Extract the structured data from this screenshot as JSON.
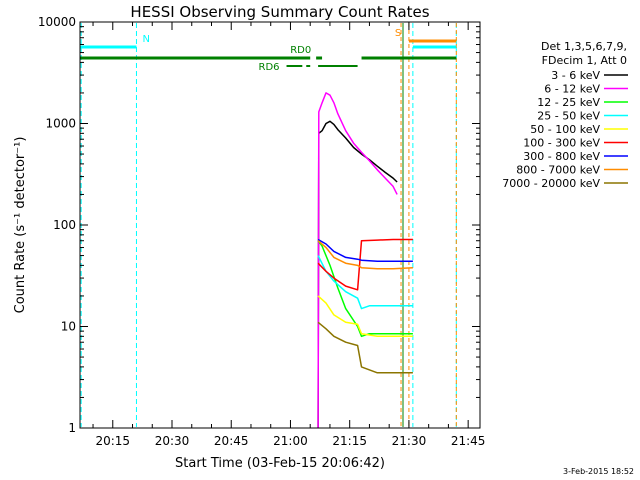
{
  "chart_data": {
    "type": "line",
    "title": "HESSI Observing Summary Count Rates",
    "xlabel": "Start Time (03-Feb-15 20:06:42)",
    "ylabel": "Count Rate (s⁻¹ detector⁻¹)",
    "x_ticks": [
      "20:15",
      "20:30",
      "20:45",
      "21:00",
      "21:15",
      "21:30",
      "21:45"
    ],
    "x_range": [
      "20:06:42",
      "21:48:00"
    ],
    "ylim": [
      1,
      10000
    ],
    "y_scale": "log",
    "y_ticks": [
      "1",
      "10",
      "100",
      "1000",
      "10000"
    ],
    "legend_header": [
      "Det 1,3,5,6,7,9,",
      "FDecim 1, Att 0"
    ],
    "legend_position": "right",
    "date_stamp": "3-Feb-2015 18:52",
    "series": [
      {
        "name": "3 - 6 keV",
        "color": "#000000",
        "points": [
          [
            "21:07:00",
            1
          ],
          [
            "21:07:10",
            800
          ],
          [
            "21:08:00",
            850
          ],
          [
            "21:09:00",
            1000
          ],
          [
            "21:10:00",
            1050
          ],
          [
            "21:11:00",
            980
          ],
          [
            "21:12:00",
            870
          ],
          [
            "21:14:00",
            720
          ],
          [
            "21:16:00",
            580
          ],
          [
            "21:18:00",
            500
          ],
          [
            "21:20:00",
            440
          ],
          [
            "21:22:00",
            380
          ],
          [
            "21:24:00",
            330
          ],
          [
            "21:26:00",
            290
          ],
          [
            "21:27:00",
            265
          ]
        ]
      },
      {
        "name": "6 - 12 keV",
        "color": "#ff00ff",
        "points": [
          [
            "21:07:00",
            1
          ],
          [
            "21:07:10",
            1300
          ],
          [
            "21:08:00",
            1600
          ],
          [
            "21:09:00",
            2000
          ],
          [
            "21:10:00",
            1900
          ],
          [
            "21:11:00",
            1600
          ],
          [
            "21:12:00",
            1250
          ],
          [
            "21:14:00",
            850
          ],
          [
            "21:16:00",
            640
          ],
          [
            "21:18:00",
            520
          ],
          [
            "21:20:00",
            430
          ],
          [
            "21:22:00",
            350
          ],
          [
            "21:24:00",
            290
          ],
          [
            "21:26:00",
            240
          ],
          [
            "21:27:00",
            200
          ]
        ]
      },
      {
        "name": "12 - 25 keV",
        "color": "#00ff00",
        "points": [
          [
            "21:07:00",
            70
          ],
          [
            "21:08:00",
            62
          ],
          [
            "21:10:00",
            40
          ],
          [
            "21:12:00",
            24
          ],
          [
            "21:14:00",
            15
          ],
          [
            "21:17:00",
            10
          ],
          [
            "21:18:00",
            8
          ],
          [
            "21:20:00",
            8.5
          ],
          [
            "21:24:00",
            8.5
          ],
          [
            "21:28:00",
            8.5
          ],
          [
            "21:30:00",
            8.5
          ],
          [
            "21:31:00",
            8.5
          ]
        ]
      },
      {
        "name": "25 - 50 keV",
        "color": "#00ffff",
        "points": [
          [
            "21:07:00",
            50
          ],
          [
            "21:09:00",
            35
          ],
          [
            "21:11:00",
            28
          ],
          [
            "21:14:00",
            22
          ],
          [
            "21:17:00",
            19
          ],
          [
            "21:18:00",
            15
          ],
          [
            "21:20:00",
            16
          ],
          [
            "21:24:00",
            16
          ],
          [
            "21:28:00",
            16
          ],
          [
            "21:31:00",
            16
          ]
        ]
      },
      {
        "name": "50 - 100 keV",
        "color": "#ffff00",
        "points": [
          [
            "21:07:00",
            20
          ],
          [
            "21:09:00",
            17
          ],
          [
            "21:11:00",
            13
          ],
          [
            "21:14:00",
            11
          ],
          [
            "21:17:00",
            10.5
          ],
          [
            "21:18:00",
            8.5
          ],
          [
            "21:22:00",
            8
          ],
          [
            "21:26:00",
            8
          ],
          [
            "21:31:00",
            8
          ]
        ]
      },
      {
        "name": "100 - 300 keV",
        "color": "#ff0000",
        "points": [
          [
            "21:07:00",
            42
          ],
          [
            "21:09:00",
            35
          ],
          [
            "21:11:00",
            30
          ],
          [
            "21:14:00",
            25
          ],
          [
            "21:17:00",
            23
          ],
          [
            "21:18:00",
            70
          ],
          [
            "21:22:00",
            71
          ],
          [
            "21:26:00",
            72
          ],
          [
            "21:31:00",
            72
          ]
        ]
      },
      {
        "name": "300 - 800 keV",
        "color": "#0000ff",
        "points": [
          [
            "21:07:00",
            72
          ],
          [
            "21:09:00",
            65
          ],
          [
            "21:11:00",
            55
          ],
          [
            "21:14:00",
            48
          ],
          [
            "21:17:00",
            46
          ],
          [
            "21:18:00",
            45
          ],
          [
            "21:22:00",
            44
          ],
          [
            "21:26:00",
            44
          ],
          [
            "21:31:00",
            44
          ]
        ]
      },
      {
        "name": "800 - 7000 keV",
        "color": "#ff8c00",
        "points": [
          [
            "21:07:00",
            70
          ],
          [
            "21:09:00",
            60
          ],
          [
            "21:11:00",
            48
          ],
          [
            "21:14:00",
            42
          ],
          [
            "21:17:00",
            40
          ],
          [
            "21:18:00",
            38
          ],
          [
            "21:22:00",
            37
          ],
          [
            "21:26:00",
            37
          ],
          [
            "21:31:00",
            38
          ]
        ]
      },
      {
        "name": "7000 - 20000 keV",
        "color": "#8b7500",
        "points": [
          [
            "21:07:00",
            11
          ],
          [
            "21:09:00",
            9.5
          ],
          [
            "21:11:00",
            8
          ],
          [
            "21:14:00",
            7
          ],
          [
            "21:17:00",
            6.5
          ],
          [
            "21:18:00",
            4
          ],
          [
            "21:22:00",
            3.5
          ],
          [
            "21:26:00",
            3.5
          ],
          [
            "21:31:00",
            3.5
          ]
        ]
      }
    ],
    "flags": [
      {
        "label": "N",
        "color": "#00ffff",
        "intervals": [
          [
            "20:06:42",
            "20:21:00"
          ],
          [
            "21:31:00",
            "21:42:00"
          ]
        ]
      },
      {
        "label": "S",
        "color": "#ff8c00",
        "intervals": [
          [
            "21:30:00",
            "21:42:00"
          ]
        ]
      },
      {
        "label": "RD0",
        "color": "#008000",
        "intervals": [
          [
            "20:06:42",
            "21:05:00"
          ],
          [
            "21:06:30",
            "21:08:00"
          ],
          [
            "21:18:00",
            "21:42:00"
          ]
        ]
      },
      {
        "label": "RD6",
        "color": "#008000",
        "intervals": [
          [
            "20:59:00",
            "21:03:00"
          ],
          [
            "21:04:00",
            "21:05:00"
          ],
          [
            "21:07:00",
            "21:17:00"
          ]
        ]
      }
    ],
    "saa_markers": [
      {
        "color": "#00ffff",
        "times": [
          "20:07:00",
          "20:21:00",
          "21:31:00",
          "21:42:00"
        ]
      },
      {
        "color": "#ff8c00",
        "times": [
          "21:28:00",
          "21:30:00",
          "21:42:00"
        ]
      },
      {
        "color": "#008000",
        "times": [
          "21:28:30"
        ]
      }
    ]
  }
}
